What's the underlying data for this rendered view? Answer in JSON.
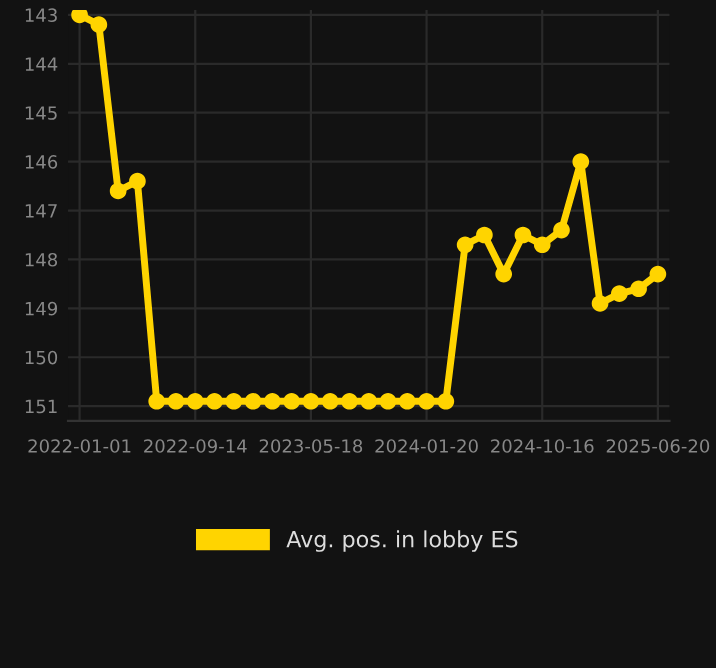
{
  "chart_data": {
    "type": "line",
    "categories": [
      "2022-01-01",
      null,
      null,
      null,
      null,
      null,
      "2022-09-14",
      null,
      null,
      null,
      null,
      null,
      "2023-05-18",
      null,
      null,
      null,
      null,
      null,
      "2024-01-20",
      null,
      null,
      null,
      null,
      null,
      "2024-10-16",
      null,
      null,
      null,
      null,
      null,
      "2025-06-20"
    ],
    "series": [
      {
        "name": "Avg. pos. in lobby ES",
        "color": "#ffd400",
        "values": [
          143.0,
          143.2,
          146.6,
          146.4,
          150.9,
          150.9,
          150.9,
          150.9,
          150.9,
          150.9,
          150.9,
          150.9,
          150.9,
          150.9,
          150.9,
          150.9,
          150.9,
          150.9,
          150.9,
          150.9,
          147.7,
          147.5,
          148.3,
          147.5,
          147.7,
          147.4,
          146.0,
          148.9,
          148.7,
          148.6,
          148.3
        ]
      }
    ],
    "ylim": [
      151.3,
      142.9
    ],
    "yticks": [
      143,
      144,
      145,
      146,
      147,
      148,
      149,
      150,
      151
    ],
    "grid": true,
    "legend": "bottom",
    "marker": "circle",
    "line_style": "solid"
  }
}
